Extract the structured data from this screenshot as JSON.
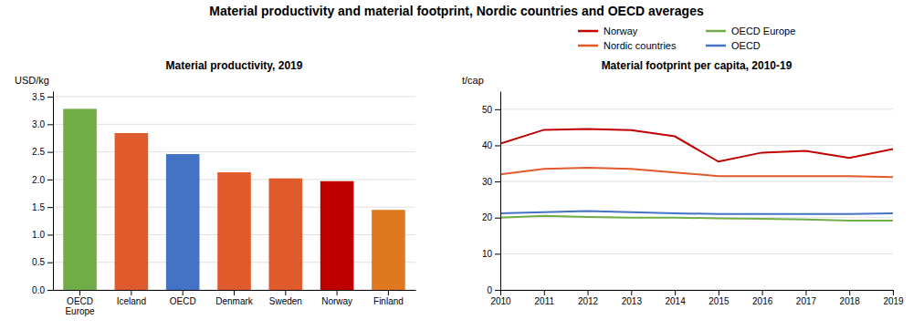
{
  "title": "Material productivity and material footprint, Nordic countries and OECD averages",
  "chart_data": [
    {
      "type": "bar",
      "title": "Material productivity, 2019",
      "ylabel": "USD/kg",
      "categories": [
        "OECD\nEurope",
        "Iceland",
        "OECD",
        "Denmark",
        "Sweden",
        "Norway",
        "Finland"
      ],
      "values": [
        3.28,
        2.84,
        2.46,
        2.13,
        2.02,
        1.97,
        1.45
      ],
      "colors": [
        "#70ad47",
        "#e05a2b",
        "#4472c4",
        "#e05a2b",
        "#e05a2b",
        "#c00000",
        "#e07820"
      ],
      "ylim": [
        0,
        3.6
      ],
      "yticks": [
        {
          "value": 0,
          "label": "0.0"
        },
        0.5,
        {
          "value": 1,
          "label": "1.0"
        },
        1.5,
        {
          "value": 2,
          "label": "2.0"
        },
        2.5,
        {
          "value": 3,
          "label": "3.0"
        },
        3.5
      ],
      "grid": true
    },
    {
      "type": "line",
      "title": "Material footprint per capita, 2010-19",
      "ylabel": "t/cap",
      "x": [
        2010,
        2011,
        2012,
        2013,
        2014,
        2015,
        2016,
        2017,
        2018,
        2019
      ],
      "xlim": [
        2010,
        2019
      ],
      "xticks": [
        2010,
        2011,
        2012,
        2013,
        2014,
        2015,
        2016,
        2017,
        2018,
        2019
      ],
      "series": [
        {
          "name": "Norway",
          "color": "#c00000",
          "values": [
            40.5,
            44.3,
            44.5,
            44.2,
            42.5,
            35.5,
            38.0,
            38.5,
            36.5,
            39.0
          ]
        },
        {
          "name": "Nordic countries",
          "color": "#e05a2b",
          "values": [
            32.0,
            33.5,
            33.8,
            33.5,
            32.5,
            31.5,
            31.5,
            31.5,
            31.5,
            31.2
          ]
        },
        {
          "name": "OECD Europe",
          "color": "#70ad47",
          "values": [
            20.0,
            20.5,
            20.2,
            20.0,
            20.0,
            19.8,
            19.7,
            19.5,
            19.2,
            19.2
          ]
        },
        {
          "name": "OECD",
          "color": "#4472c4",
          "values": [
            21.2,
            21.5,
            21.8,
            21.5,
            21.2,
            21.0,
            21.0,
            21.0,
            21.0,
            21.2
          ]
        }
      ],
      "ylim": [
        0,
        55
      ],
      "yticks": [
        0,
        10,
        20,
        30,
        40,
        50
      ],
      "grid": true,
      "legend": "top"
    }
  ]
}
